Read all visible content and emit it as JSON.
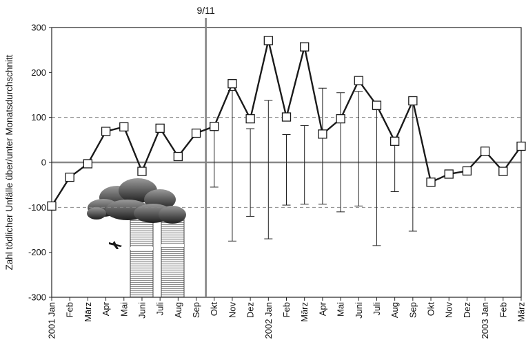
{
  "chart_data": {
    "type": "line",
    "title": "",
    "xlabel": "",
    "ylabel": "Zahl tödlicher Unfälle über/unter Monatsdurchschnitt",
    "ylim": [
      -300,
      300
    ],
    "yticks": [
      -300,
      -200,
      -100,
      0,
      100,
      200,
      300
    ],
    "grid": "dashed horizontal lines at -100 and 100; solid line at 0",
    "categories": [
      "2001 Jan",
      "Feb",
      "März",
      "Apr",
      "Mai",
      "Juni",
      "Juli",
      "Aug",
      "Sep",
      "Okt",
      "Nov",
      "Dez",
      "2002 Jan",
      "Feb",
      "März",
      "Apr",
      "Mai",
      "Juni",
      "Juli",
      "Aug",
      "Sep",
      "Okt",
      "Nov",
      "Dez",
      "2003 Jan",
      "Feb",
      "März"
    ],
    "series": [
      {
        "values": [
          -97,
          -33,
          -3,
          69,
          79,
          -20,
          76,
          13,
          65,
          80,
          175,
          97,
          271,
          101,
          257,
          63,
          97,
          182,
          127,
          47,
          137,
          -44,
          -26,
          -19,
          25,
          -20,
          36
        ]
      }
    ],
    "error_bars": [
      {
        "category_index": 9,
        "low": -55,
        "high": 80
      },
      {
        "category_index": 10,
        "low": -175,
        "high": 160
      },
      {
        "category_index": 11,
        "low": -120,
        "high": 75
      },
      {
        "category_index": 12,
        "low": -170,
        "high": 138
      },
      {
        "category_index": 13,
        "low": -95,
        "high": 62
      },
      {
        "category_index": 14,
        "low": -93,
        "high": 82
      },
      {
        "category_index": 15,
        "low": -93,
        "high": 165
      },
      {
        "category_index": 16,
        "low": -110,
        "high": 155
      },
      {
        "category_index": 17,
        "low": -97,
        "high": 158
      },
      {
        "category_index": 18,
        "low": -185,
        "high": 117
      },
      {
        "category_index": 19,
        "low": -65,
        "high": 47
      },
      {
        "category_index": 20,
        "low": -153,
        "high": 137
      }
    ],
    "event_marker": {
      "label": "9/11",
      "between_categories": [
        8,
        9
      ]
    },
    "colors": {
      "line": "#1a1a1a",
      "marker_fill": "#ffffff",
      "event_line": "#808080",
      "zero_line": "#888888",
      "grid": "#888888"
    },
    "decoration": "illustration of the burning twin towers with smoke cloud and an airplane"
  }
}
